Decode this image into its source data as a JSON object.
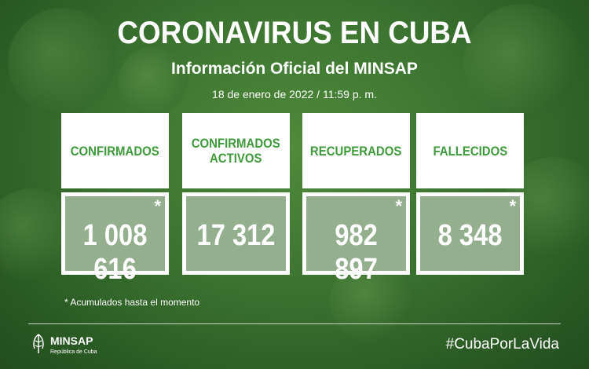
{
  "header": {
    "title": "CORONAVIRUS EN CUBA",
    "subtitle": "Información Oficial del MINSAP",
    "date": "18 de enero de 2022 / 11:59 p. m."
  },
  "cards": [
    {
      "label_line1": "CONFIRMADOS",
      "label_line2": "",
      "value": "1 008 616",
      "star": "*"
    },
    {
      "label_line1": "CONFIRMADOS",
      "label_line2": "ACTIVOS",
      "value": "17 312",
      "star": ""
    },
    {
      "label_line1": "RECUPERADOS",
      "label_line2": "",
      "value": "982 897",
      "star": "*"
    },
    {
      "label_line1": "FALLECIDOS",
      "label_line2": "",
      "value": "8 348",
      "star": "*"
    }
  ],
  "footnote": "* Acumulados hasta el momento",
  "footer": {
    "org": "MINSAP",
    "org_sub": "República de Cuba",
    "hashtag": "#CubaPorLaVida"
  },
  "colors": {
    "background": "#3b7330",
    "label_green": "#3e9a3a",
    "text": "#ffffff"
  }
}
